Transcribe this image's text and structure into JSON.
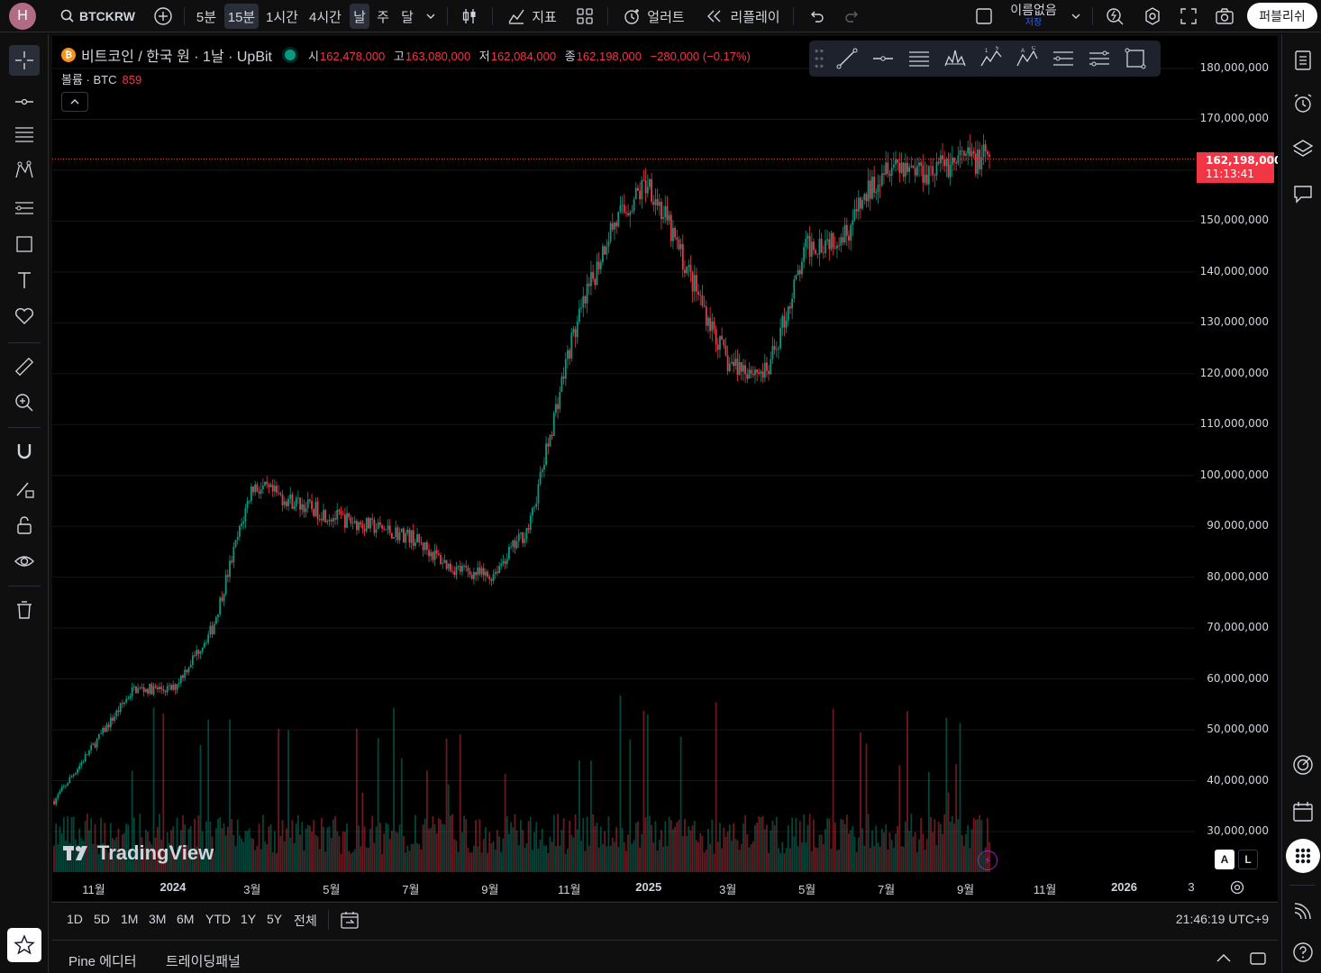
{
  "topbar": {
    "avatar_letter": "H",
    "symbol": "BTCKRW",
    "intervals": [
      "5분",
      "15분",
      "1시간",
      "4시간",
      "날",
      "주",
      "달"
    ],
    "indicators_label": "지표",
    "alert_label": "얼러트",
    "replay_label": "리플레이",
    "layout_name": "이름없음",
    "layout_status": "저장",
    "publish_label": "퍼블리쉬"
  },
  "legend": {
    "title": "비트코인 / 한국 원 · 1날 · UpBit",
    "open_key": "시",
    "open": "162,478,000",
    "high_key": "고",
    "high": "163,080,000",
    "low_key": "저",
    "low": "162,084,000",
    "close_key": "종",
    "close": "162,198,000",
    "change": "−280,000 (−0.17%)",
    "volume_label": "볼륨 · BTC",
    "volume_value": "859"
  },
  "price_axis": {
    "labels": [
      "180,000,000",
      "170,000,000",
      "150,000,000",
      "140,000,000",
      "130,000,000",
      "120,000,000",
      "110,000,000",
      "100,000,000",
      "90,000,000",
      "80,000,000",
      "70,000,000",
      "60,000,000",
      "50,000,000",
      "40,000,000",
      "30,000,000"
    ],
    "last_price": "162,198,000",
    "countdown": "11:13:41"
  },
  "time_axis": {
    "labels": [
      "11월",
      "2024",
      "3월",
      "5월",
      "7월",
      "9월",
      "11월",
      "2025",
      "3월",
      "5월",
      "7월",
      "9월",
      "11월",
      "2026",
      "3"
    ]
  },
  "watermark": "TradingView",
  "scale_buttons": {
    "auto": "A",
    "log": "L"
  },
  "range_buttons": [
    "1D",
    "5D",
    "1M",
    "3M",
    "6M",
    "YTD",
    "1Y",
    "5Y",
    "전체"
  ],
  "clock": "21:46:19 UTC+9",
  "bottom_tabs": [
    "Pine 에디터",
    "트레이딩패널"
  ],
  "colors": {
    "up": "#089981",
    "down": "#f23645",
    "background": "#000000",
    "panel": "#0f0f0f"
  },
  "chart_data": {
    "type": "candlestick",
    "title": "비트코인 / 한국 원 · 1날 · UpBit",
    "xlabel": "",
    "ylabel": "",
    "ylim": [
      25000000,
      185000000
    ],
    "x_range": [
      "2023-10",
      "2025-09"
    ],
    "last_price": 162198000,
    "approx_trend": [
      {
        "x": "2023-10",
        "y": 36000000
      },
      {
        "x": "2023-11",
        "y": 47000000
      },
      {
        "x": "2023-12",
        "y": 58000000
      },
      {
        "x": "2024-01",
        "y": 58000000
      },
      {
        "x": "2024-02",
        "y": 70000000
      },
      {
        "x": "2024-03",
        "y": 98000000
      },
      {
        "x": "2024-04",
        "y": 95000000
      },
      {
        "x": "2024-05",
        "y": 92000000
      },
      {
        "x": "2024-06",
        "y": 90000000
      },
      {
        "x": "2024-07",
        "y": 88000000
      },
      {
        "x": "2024-08",
        "y": 82000000
      },
      {
        "x": "2024-09",
        "y": 80000000
      },
      {
        "x": "2024-10",
        "y": 90000000
      },
      {
        "x": "2024-11",
        "y": 125000000
      },
      {
        "x": "2024-12",
        "y": 148000000
      },
      {
        "x": "2025-01",
        "y": 158000000
      },
      {
        "x": "2025-02",
        "y": 140000000
      },
      {
        "x": "2025-03",
        "y": 122000000
      },
      {
        "x": "2025-04",
        "y": 120000000
      },
      {
        "x": "2025-05",
        "y": 145000000
      },
      {
        "x": "2025-06",
        "y": 148000000
      },
      {
        "x": "2025-07",
        "y": 162000000
      },
      {
        "x": "2025-08",
        "y": 160000000
      },
      {
        "x": "2025-09",
        "y": 162198000
      }
    ]
  }
}
